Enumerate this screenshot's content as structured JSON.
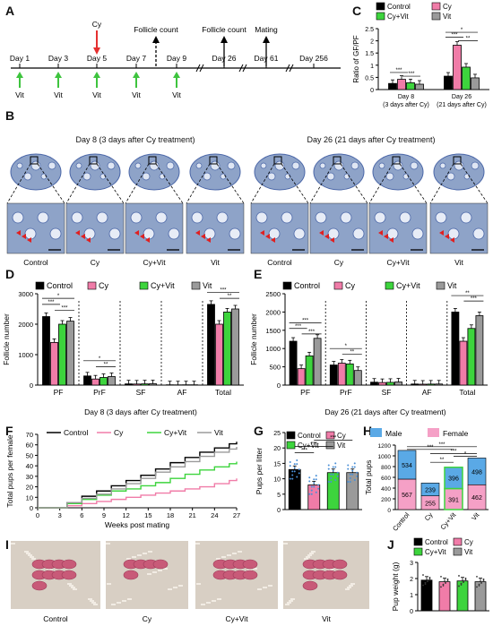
{
  "panels": {
    "A": "A",
    "B": "B",
    "C": "C",
    "D": "D",
    "E": "E",
    "F": "F",
    "G": "G",
    "H": "H",
    "I": "I",
    "J": "J"
  },
  "timeline": {
    "days": [
      "Day 1",
      "Day 3",
      "Day 5",
      "Day 7",
      "Day 9",
      "Day 26",
      "Day 61",
      "Day 256"
    ],
    "vit_label": "Vit",
    "cy_label": "Cy",
    "events": [
      "Follicle count",
      "Follicle count",
      "Mating"
    ],
    "colors": {
      "vit_arrow": "#3ec43e",
      "cy_arrow": "#e53030"
    }
  },
  "groups": [
    "Control",
    "Cy",
    "Cy+Vit",
    "Vit"
  ],
  "colors": {
    "Control": "#000000",
    "Cy": "#f07ca8",
    "Cy+Vit": "#3dd43d",
    "Vit": "#9a9a9a",
    "Male": "#5aa9e6",
    "Female": "#f5a0c6"
  },
  "histology": {
    "day8_title": "Day 8 (3 days after Cy treatment)",
    "day26_title": "Day 26 (21 days after Cy treatment)",
    "captions": [
      "Control",
      "Cy",
      "Cy+Vit",
      "Vit"
    ],
    "colors": {
      "tissue": "#8ea3c8",
      "stain": "#4b67a8",
      "background": "#eef1f7",
      "arrow": "#e02020"
    }
  },
  "panel_d_caption": "Day 8 (3 days after Cy treatment)",
  "panel_e_caption": "Day 26 (21 days after Cy treatment)",
  "photo_captions": [
    "Control",
    "Cy",
    "Cy+Vit",
    "Vit"
  ],
  "sig": {
    "s1": "*",
    "s2": "**",
    "s3": "***"
  },
  "chart_data": [
    {
      "id": "C",
      "type": "bar",
      "ylabel": "Ratio of GF/PF",
      "ylim": [
        0,
        2.5
      ],
      "yticks": [
        0,
        0.5,
        1,
        1.5,
        2,
        2.5
      ],
      "categories": [
        "Day 8\n(3 days after Cy)",
        "Day 26\n(21 days after Cy)"
      ],
      "category_lines": [
        [
          "Day 8",
          "(3 days after Cy)"
        ],
        [
          "Day 26",
          "(21 days after Cy)"
        ]
      ],
      "series": [
        {
          "name": "Control",
          "values": [
            0.25,
            0.55
          ]
        },
        {
          "name": "Cy",
          "values": [
            0.42,
            1.82
          ]
        },
        {
          "name": "Cy+Vit",
          "values": [
            0.28,
            0.92
          ]
        },
        {
          "name": "Vit",
          "values": [
            0.22,
            0.48
          ]
        }
      ],
      "legend": "top"
    },
    {
      "id": "D",
      "type": "bar",
      "ylabel": "Follicle number",
      "ylim": [
        0,
        3000
      ],
      "yticks": [
        0,
        1000,
        2000,
        3000
      ],
      "categories": [
        "PF",
        "PrF",
        "SF",
        "AF",
        "Total"
      ],
      "series": [
        {
          "name": "Control",
          "values": [
            2250,
            300,
            40,
            10,
            2650
          ]
        },
        {
          "name": "Cy",
          "values": [
            1400,
            200,
            35,
            8,
            2000
          ]
        },
        {
          "name": "Cy+Vit",
          "values": [
            2000,
            250,
            40,
            10,
            2400
          ]
        },
        {
          "name": "Vit",
          "values": [
            2100,
            280,
            45,
            10,
            2500
          ]
        }
      ],
      "legend": "top"
    },
    {
      "id": "E",
      "type": "bar",
      "ylabel": "Follicle number",
      "ylim": [
        0,
        2500
      ],
      "yticks": [
        0,
        500,
        1000,
        1500,
        2000,
        2500
      ],
      "categories": [
        "PF",
        "PrF",
        "SF",
        "AF",
        "Total"
      ],
      "series": [
        {
          "name": "Control",
          "values": [
            1200,
            550,
            80,
            30,
            2000
          ]
        },
        {
          "name": "Cy",
          "values": [
            450,
            600,
            70,
            25,
            1200
          ]
        },
        {
          "name": "Cy+Vit",
          "values": [
            800,
            580,
            75,
            28,
            1550
          ]
        },
        {
          "name": "Vit",
          "values": [
            1280,
            400,
            85,
            30,
            1900
          ]
        }
      ],
      "legend": "top"
    },
    {
      "id": "F",
      "type": "line",
      "xlabel": "Weeks post mating",
      "ylabel": "Total pups per female",
      "xlim": [
        0,
        27
      ],
      "ylim": [
        0,
        70
      ],
      "xticks": [
        0,
        3,
        6,
        9,
        12,
        15,
        18,
        21,
        24,
        27
      ],
      "yticks": [
        0,
        10,
        20,
        30,
        40,
        50,
        60,
        70
      ],
      "series": [
        {
          "name": "Control",
          "x": [
            0,
            3.5,
            4,
            6,
            8,
            10,
            12,
            14,
            16,
            18,
            20,
            22,
            24,
            26,
            27
          ],
          "y": [
            0,
            0,
            5,
            11,
            16,
            21,
            26,
            31,
            37,
            43,
            48,
            53,
            57,
            61,
            63
          ]
        },
        {
          "name": "Cy",
          "x": [
            0,
            3.5,
            4,
            6,
            8,
            10,
            12,
            14,
            16,
            18,
            20,
            22,
            24,
            26,
            27
          ],
          "y": [
            0,
            0,
            2,
            4,
            6,
            8,
            10,
            12,
            14,
            16,
            18,
            20,
            23,
            26,
            28
          ]
        },
        {
          "name": "Cy+Vit",
          "x": [
            0,
            3.5,
            4,
            6,
            8,
            10,
            12,
            14,
            16,
            18,
            20,
            22,
            24,
            26,
            27
          ],
          "y": [
            0,
            0,
            4,
            8,
            12,
            16,
            18,
            21,
            24,
            28,
            32,
            36,
            39,
            42,
            44
          ]
        },
        {
          "name": "Vit",
          "x": [
            0,
            3.5,
            4,
            6,
            8,
            10,
            12,
            14,
            16,
            18,
            20,
            22,
            24,
            26,
            27
          ],
          "y": [
            0,
            0,
            5,
            9,
            13,
            18,
            23,
            28,
            34,
            39,
            44,
            49,
            53,
            56,
            58
          ]
        }
      ],
      "legend": "top"
    },
    {
      "id": "G",
      "type": "bar",
      "ylabel": "Pups per litter",
      "ylim": [
        0,
        25
      ],
      "yticks": [
        0,
        5,
        10,
        15,
        20,
        25
      ],
      "categories": [
        "Control",
        "Cy",
        "Cy+Vit",
        "Vit"
      ],
      "series": [
        {
          "name": "Mean",
          "values": [
            13,
            8,
            12,
            12
          ]
        }
      ],
      "legend": "top"
    },
    {
      "id": "H",
      "type": "bar",
      "ylabel": "Total pups",
      "ylim": [
        0,
        1200
      ],
      "yticks": [
        0,
        200,
        400,
        600,
        800,
        1000,
        1200
      ],
      "categories": [
        "Control",
        "Cy",
        "Cy+Vit",
        "Vit"
      ],
      "series": [
        {
          "name": "Female",
          "values": [
            567,
            255,
            391,
            462
          ]
        },
        {
          "name": "Male",
          "values": [
            534,
            239,
            396,
            498
          ]
        }
      ],
      "stacked": true,
      "legend": "top"
    },
    {
      "id": "J",
      "type": "bar",
      "ylabel": "Pup weight (g)",
      "ylim": [
        0,
        3
      ],
      "yticks": [
        0,
        1,
        2,
        3
      ],
      "categories": [
        "Control",
        "Cy",
        "Cy+Vit",
        "Vit"
      ],
      "series": [
        {
          "name": "Mean",
          "values": [
            1.9,
            1.8,
            1.85,
            1.8
          ]
        }
      ],
      "legend": "top"
    }
  ]
}
